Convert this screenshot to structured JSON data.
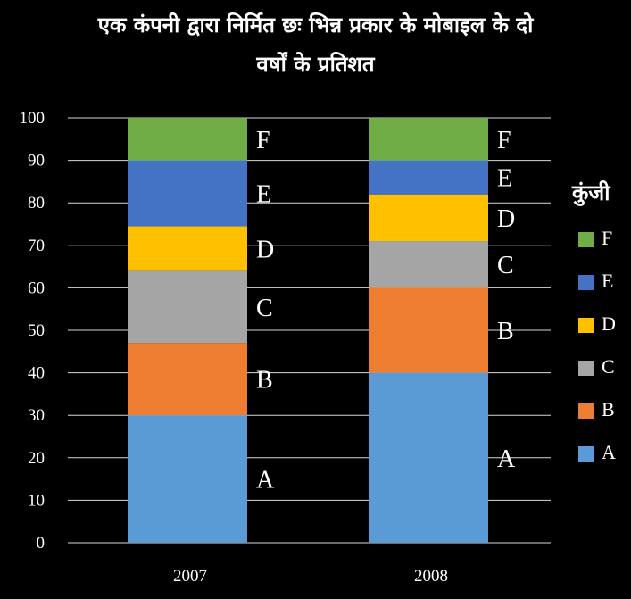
{
  "chart_data": {
    "type": "bar",
    "stacked": true,
    "title_line1": "एक कंपनी द्वारा निर्मित छः भिन्न प्रकार के मोबाइल के दो",
    "title_line2": "वर्षों के प्रतिशत",
    "categories": [
      "2007",
      "2008"
    ],
    "yticks": [
      "0",
      "10",
      "20",
      "30",
      "40",
      "50",
      "60",
      "70",
      "80",
      "90",
      "100"
    ],
    "ylim": [
      0,
      100
    ],
    "grid": true,
    "legend_title": "कुंजी",
    "legend_position": "right",
    "series": [
      {
        "name": "A",
        "color": "#5B9BD5",
        "values": [
          30,
          40
        ]
      },
      {
        "name": "B",
        "color": "#ED7D31",
        "values": [
          17,
          20
        ]
      },
      {
        "name": "C",
        "color": "#A5A5A5",
        "values": [
          17,
          11
        ]
      },
      {
        "name": "D",
        "color": "#FFC000",
        "values": [
          10.5,
          11
        ]
      },
      {
        "name": "E",
        "color": "#4472C4",
        "values": [
          15.5,
          8
        ]
      },
      {
        "name": "F",
        "color": "#70AD47",
        "values": [
          10,
          10
        ]
      }
    ]
  }
}
